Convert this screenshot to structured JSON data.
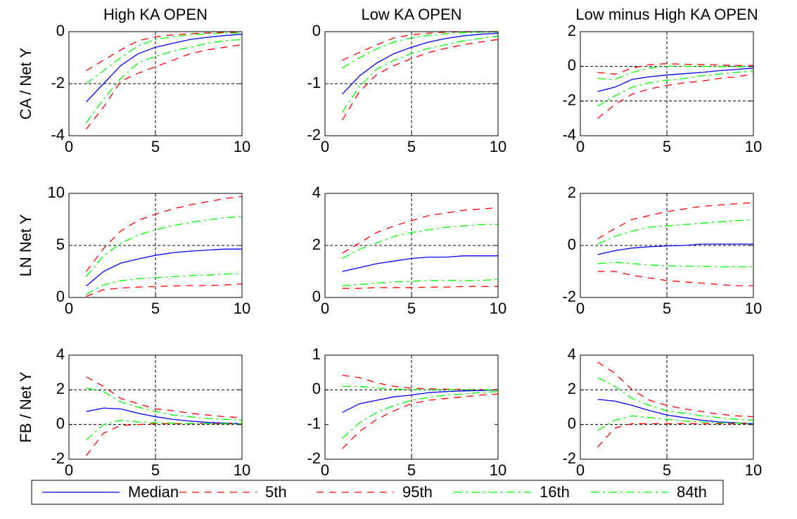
{
  "chart_data": [
    {
      "type": "line",
      "title": "High KA OPEN",
      "ylabel": "CA / Net Y",
      "x": [
        1,
        2,
        3,
        4,
        5,
        6,
        7,
        8,
        9,
        10
      ],
      "xlim": [
        0,
        10
      ],
      "xticks": [
        0,
        5,
        10
      ],
      "ylim": [
        -4,
        0
      ],
      "yticks": [
        -4,
        -2,
        0
      ],
      "reference_lines": {
        "x": [
          5
        ],
        "y": [
          -2
        ]
      },
      "series": [
        {
          "values": [
            -2.7,
            -2.0,
            -1.3,
            -0.85,
            -0.6,
            -0.45,
            -0.3,
            -0.22,
            -0.15,
            -0.1
          ]
        },
        {
          "values": [
            -3.75,
            -2.9,
            -1.9,
            -1.6,
            -1.35,
            -1.1,
            -0.85,
            -0.7,
            -0.6,
            -0.5
          ]
        },
        {
          "values": [
            -1.5,
            -1.1,
            -0.7,
            -0.35,
            -0.2,
            -0.12,
            -0.08,
            -0.05,
            -0.03,
            -0.02
          ]
        },
        {
          "values": [
            -3.5,
            -2.6,
            -1.8,
            -1.2,
            -0.95,
            -0.75,
            -0.6,
            -0.45,
            -0.35,
            -0.3
          ]
        },
        {
          "values": [
            -2.0,
            -1.5,
            -1.0,
            -0.55,
            -0.3,
            -0.2,
            -0.12,
            -0.08,
            -0.06,
            -0.05
          ]
        }
      ]
    },
    {
      "type": "line",
      "title": "Low KA OPEN",
      "x": [
        1,
        2,
        3,
        4,
        5,
        6,
        7,
        8,
        9,
        10
      ],
      "xlim": [
        0,
        10
      ],
      "xticks": [
        0,
        5,
        10
      ],
      "ylim": [
        -2,
        0
      ],
      "yticks": [
        -2,
        -1,
        0
      ],
      "reference_lines": {
        "x": [
          5
        ],
        "y": [
          -1
        ]
      },
      "series": [
        {
          "values": [
            -1.2,
            -0.85,
            -0.6,
            -0.42,
            -0.3,
            -0.2,
            -0.13,
            -0.08,
            -0.05,
            -0.03
          ]
        },
        {
          "values": [
            -1.7,
            -1.15,
            -0.82,
            -0.65,
            -0.52,
            -0.4,
            -0.32,
            -0.25,
            -0.2,
            -0.15
          ]
        },
        {
          "values": [
            -0.55,
            -0.4,
            -0.25,
            -0.12,
            -0.06,
            -0.03,
            -0.01,
            0,
            0,
            0
          ]
        },
        {
          "values": [
            -1.55,
            -1.05,
            -0.72,
            -0.55,
            -0.42,
            -0.32,
            -0.25,
            -0.18,
            -0.13,
            -0.08
          ]
        },
        {
          "values": [
            -0.7,
            -0.5,
            -0.33,
            -0.2,
            -0.12,
            -0.07,
            -0.04,
            -0.02,
            -0.01,
            -0.01
          ]
        }
      ]
    },
    {
      "type": "line",
      "title": "Low minus High KA OPEN",
      "x": [
        1,
        2,
        3,
        4,
        5,
        6,
        7,
        8,
        9,
        10
      ],
      "xlim": [
        0,
        10
      ],
      "xticks": [
        0,
        5,
        10
      ],
      "ylim": [
        -4,
        2
      ],
      "yticks": [
        -4,
        -2,
        0,
        2
      ],
      "reference_lines": {
        "x": [
          5
        ],
        "y": [
          0,
          -2
        ]
      },
      "series": [
        {
          "values": [
            -1.45,
            -1.2,
            -0.75,
            -0.6,
            -0.5,
            -0.42,
            -0.35,
            -0.25,
            -0.18,
            -0.1
          ]
        },
        {
          "values": [
            -3.0,
            -2.2,
            -1.6,
            -1.3,
            -1.1,
            -0.95,
            -0.85,
            -0.7,
            -0.6,
            -0.45
          ]
        },
        {
          "values": [
            -0.35,
            -0.45,
            -0.1,
            0.1,
            0.15,
            0.12,
            0.1,
            0.08,
            0.05,
            0.05
          ]
        },
        {
          "values": [
            -2.3,
            -1.7,
            -1.2,
            -0.95,
            -0.8,
            -0.7,
            -0.55,
            -0.45,
            -0.35,
            -0.25
          ]
        },
        {
          "values": [
            -0.7,
            -0.75,
            -0.35,
            -0.1,
            0,
            0,
            0,
            -0.02,
            -0.02,
            -0.02
          ]
        }
      ]
    },
    {
      "type": "line",
      "ylabel": "LN Net Y",
      "x": [
        1,
        2,
        3,
        4,
        5,
        6,
        7,
        8,
        9,
        10
      ],
      "xlim": [
        0,
        10
      ],
      "xticks": [
        0,
        5,
        10
      ],
      "ylim": [
        0,
        10
      ],
      "yticks": [
        0,
        5,
        10
      ],
      "reference_lines": {
        "x": [
          5
        ],
        "y": [
          5
        ]
      },
      "series": [
        {
          "values": [
            1.1,
            2.5,
            3.3,
            3.7,
            4.05,
            4.3,
            4.45,
            4.55,
            4.65,
            4.65
          ]
        },
        {
          "values": [
            0.1,
            0.75,
            0.9,
            1.0,
            1.05,
            1.1,
            1.15,
            1.15,
            1.2,
            1.3
          ]
        },
        {
          "values": [
            2.5,
            4.7,
            6.4,
            7.4,
            8.0,
            8.5,
            8.9,
            9.2,
            9.5,
            9.7
          ]
        },
        {
          "values": [
            0.3,
            1.2,
            1.6,
            1.8,
            1.9,
            2.0,
            2.1,
            2.15,
            2.25,
            2.3
          ]
        },
        {
          "values": [
            2.0,
            4.0,
            5.2,
            6.0,
            6.5,
            6.9,
            7.2,
            7.45,
            7.65,
            7.8
          ]
        }
      ]
    },
    {
      "type": "line",
      "x": [
        1,
        2,
        3,
        4,
        5,
        6,
        7,
        8,
        9,
        10
      ],
      "xlim": [
        0,
        10
      ],
      "xticks": [
        0,
        5,
        10
      ],
      "ylim": [
        0,
        4
      ],
      "yticks": [
        0,
        2,
        4
      ],
      "reference_lines": {
        "x": [
          5
        ],
        "y": [
          2
        ]
      },
      "series": [
        {
          "values": [
            1.0,
            1.15,
            1.3,
            1.4,
            1.5,
            1.55,
            1.55,
            1.6,
            1.6,
            1.6
          ]
        },
        {
          "values": [
            0.35,
            0.35,
            0.38,
            0.38,
            0.38,
            0.4,
            0.4,
            0.42,
            0.42,
            0.42
          ]
        },
        {
          "values": [
            1.7,
            2.1,
            2.5,
            2.75,
            2.95,
            3.15,
            3.25,
            3.35,
            3.4,
            3.45
          ]
        },
        {
          "values": [
            0.45,
            0.5,
            0.55,
            0.6,
            0.62,
            0.65,
            0.65,
            0.65,
            0.65,
            0.7
          ]
        },
        {
          "values": [
            1.5,
            1.85,
            2.1,
            2.35,
            2.5,
            2.6,
            2.7,
            2.75,
            2.8,
            2.8
          ]
        }
      ]
    },
    {
      "type": "line",
      "x": [
        1,
        2,
        3,
        4,
        5,
        6,
        7,
        8,
        9,
        10
      ],
      "xlim": [
        0,
        10
      ],
      "xticks": [
        0,
        5,
        10
      ],
      "ylim": [
        -2,
        2
      ],
      "yticks": [
        -2,
        0,
        2
      ],
      "reference_lines": {
        "x": [
          5
        ],
        "y": [
          0
        ]
      },
      "series": [
        {
          "values": [
            -0.35,
            -0.2,
            -0.1,
            -0.05,
            -0.02,
            0,
            0.05,
            0.05,
            0.05,
            0.05
          ]
        },
        {
          "values": [
            -1.0,
            -1.0,
            -1.15,
            -1.25,
            -1.35,
            -1.4,
            -1.45,
            -1.5,
            -1.55,
            -1.55
          ]
        },
        {
          "values": [
            0.25,
            0.65,
            1.0,
            1.15,
            1.3,
            1.4,
            1.5,
            1.55,
            1.6,
            1.65
          ]
        },
        {
          "values": [
            -0.7,
            -0.65,
            -0.7,
            -0.75,
            -0.78,
            -0.8,
            -0.8,
            -0.82,
            -0.82,
            -0.82
          ]
        },
        {
          "values": [
            0.05,
            0.35,
            0.55,
            0.7,
            0.75,
            0.8,
            0.85,
            0.9,
            0.95,
            1.0
          ]
        }
      ]
    },
    {
      "type": "line",
      "ylabel": "FB / Net Y",
      "x": [
        1,
        2,
        3,
        4,
        5,
        6,
        7,
        8,
        9,
        10
      ],
      "xlim": [
        0,
        10
      ],
      "xticks": [
        0,
        5,
        10
      ],
      "ylim": [
        -2,
        4
      ],
      "yticks": [
        -2,
        0,
        2,
        4
      ],
      "reference_lines": {
        "x": [
          5
        ],
        "y": [
          2,
          0
        ]
      },
      "series": [
        {
          "values": [
            0.75,
            0.95,
            0.9,
            0.65,
            0.45,
            0.3,
            0.2,
            0.12,
            0.08,
            0.05
          ]
        },
        {
          "values": [
            -1.8,
            -0.5,
            -0.05,
            0,
            0.05,
            0.05,
            0.05,
            0.05,
            0.05,
            0.05
          ]
        },
        {
          "values": [
            2.75,
            2.2,
            1.5,
            1.2,
            0.9,
            0.8,
            0.65,
            0.55,
            0.45,
            0.4
          ]
        },
        {
          "values": [
            -0.9,
            0,
            0.25,
            0.15,
            0.1,
            0.08,
            0.06,
            0.05,
            0.05,
            0.05
          ]
        },
        {
          "values": [
            2.1,
            1.9,
            1.3,
            1.0,
            0.75,
            0.55,
            0.45,
            0.35,
            0.3,
            0.25
          ]
        }
      ]
    },
    {
      "type": "line",
      "x": [
        1,
        2,
        3,
        4,
        5,
        6,
        7,
        8,
        9,
        10
      ],
      "xlim": [
        0,
        10
      ],
      "xticks": [
        0,
        5,
        10
      ],
      "ylim": [
        -2,
        1
      ],
      "yticks": [
        -2,
        -1,
        0,
        1
      ],
      "reference_lines": {
        "x": [
          5
        ],
        "y": [
          0
        ]
      },
      "series": [
        {
          "values": [
            -0.65,
            -0.4,
            -0.3,
            -0.2,
            -0.15,
            -0.08,
            -0.05,
            -0.03,
            -0.02,
            0
          ]
        },
        {
          "values": [
            -1.7,
            -1.2,
            -0.85,
            -0.6,
            -0.4,
            -0.3,
            -0.25,
            -0.2,
            -0.15,
            -0.12
          ]
        },
        {
          "values": [
            0.42,
            0.35,
            0.2,
            0.1,
            0.05,
            0.03,
            0.02,
            0.01,
            0.01,
            0
          ]
        },
        {
          "values": [
            -1.4,
            -0.95,
            -0.65,
            -0.45,
            -0.3,
            -0.22,
            -0.15,
            -0.12,
            -0.08,
            -0.05
          ]
        },
        {
          "values": [
            0.1,
            0.1,
            0.05,
            0.02,
            0.01,
            0,
            0,
            0,
            0,
            0
          ]
        }
      ]
    },
    {
      "type": "line",
      "x": [
        1,
        2,
        3,
        4,
        5,
        6,
        7,
        8,
        9,
        10
      ],
      "xlim": [
        0,
        10
      ],
      "xticks": [
        0,
        5,
        10
      ],
      "ylim": [
        -2,
        4
      ],
      "yticks": [
        -2,
        0,
        2,
        4
      ],
      "reference_lines": {
        "x": [
          5
        ],
        "y": [
          2,
          0
        ]
      },
      "series": [
        {
          "values": [
            1.45,
            1.35,
            1.1,
            0.8,
            0.55,
            0.4,
            0.25,
            0.15,
            0.1,
            0.05
          ]
        },
        {
          "values": [
            -1.3,
            -0.2,
            0.05,
            0.05,
            0.05,
            0.05,
            0.05,
            0.05,
            0.05,
            0.05
          ]
        },
        {
          "values": [
            3.6,
            2.95,
            2.0,
            1.4,
            1.1,
            0.9,
            0.75,
            0.6,
            0.5,
            0.45
          ]
        },
        {
          "values": [
            -0.35,
            0.25,
            0.5,
            0.4,
            0.3,
            0.2,
            0.15,
            0.1,
            0.08,
            0.05
          ]
        },
        {
          "values": [
            2.7,
            2.2,
            1.5,
            1.1,
            0.8,
            0.65,
            0.5,
            0.4,
            0.3,
            0.25
          ]
        }
      ]
    }
  ],
  "legend": {
    "position": "bottom",
    "entries": [
      {
        "name": "Median",
        "color": "#0000ff",
        "style": "solid"
      },
      {
        "name": "5th",
        "color": "#ff0000",
        "style": "dashed"
      },
      {
        "name": "95th",
        "color": "#ff0000",
        "style": "dashed"
      },
      {
        "name": "16th",
        "color": "#00ff00",
        "style": "dashdot"
      },
      {
        "name": "84th",
        "color": "#00ff00",
        "style": "dashdot"
      }
    ]
  }
}
